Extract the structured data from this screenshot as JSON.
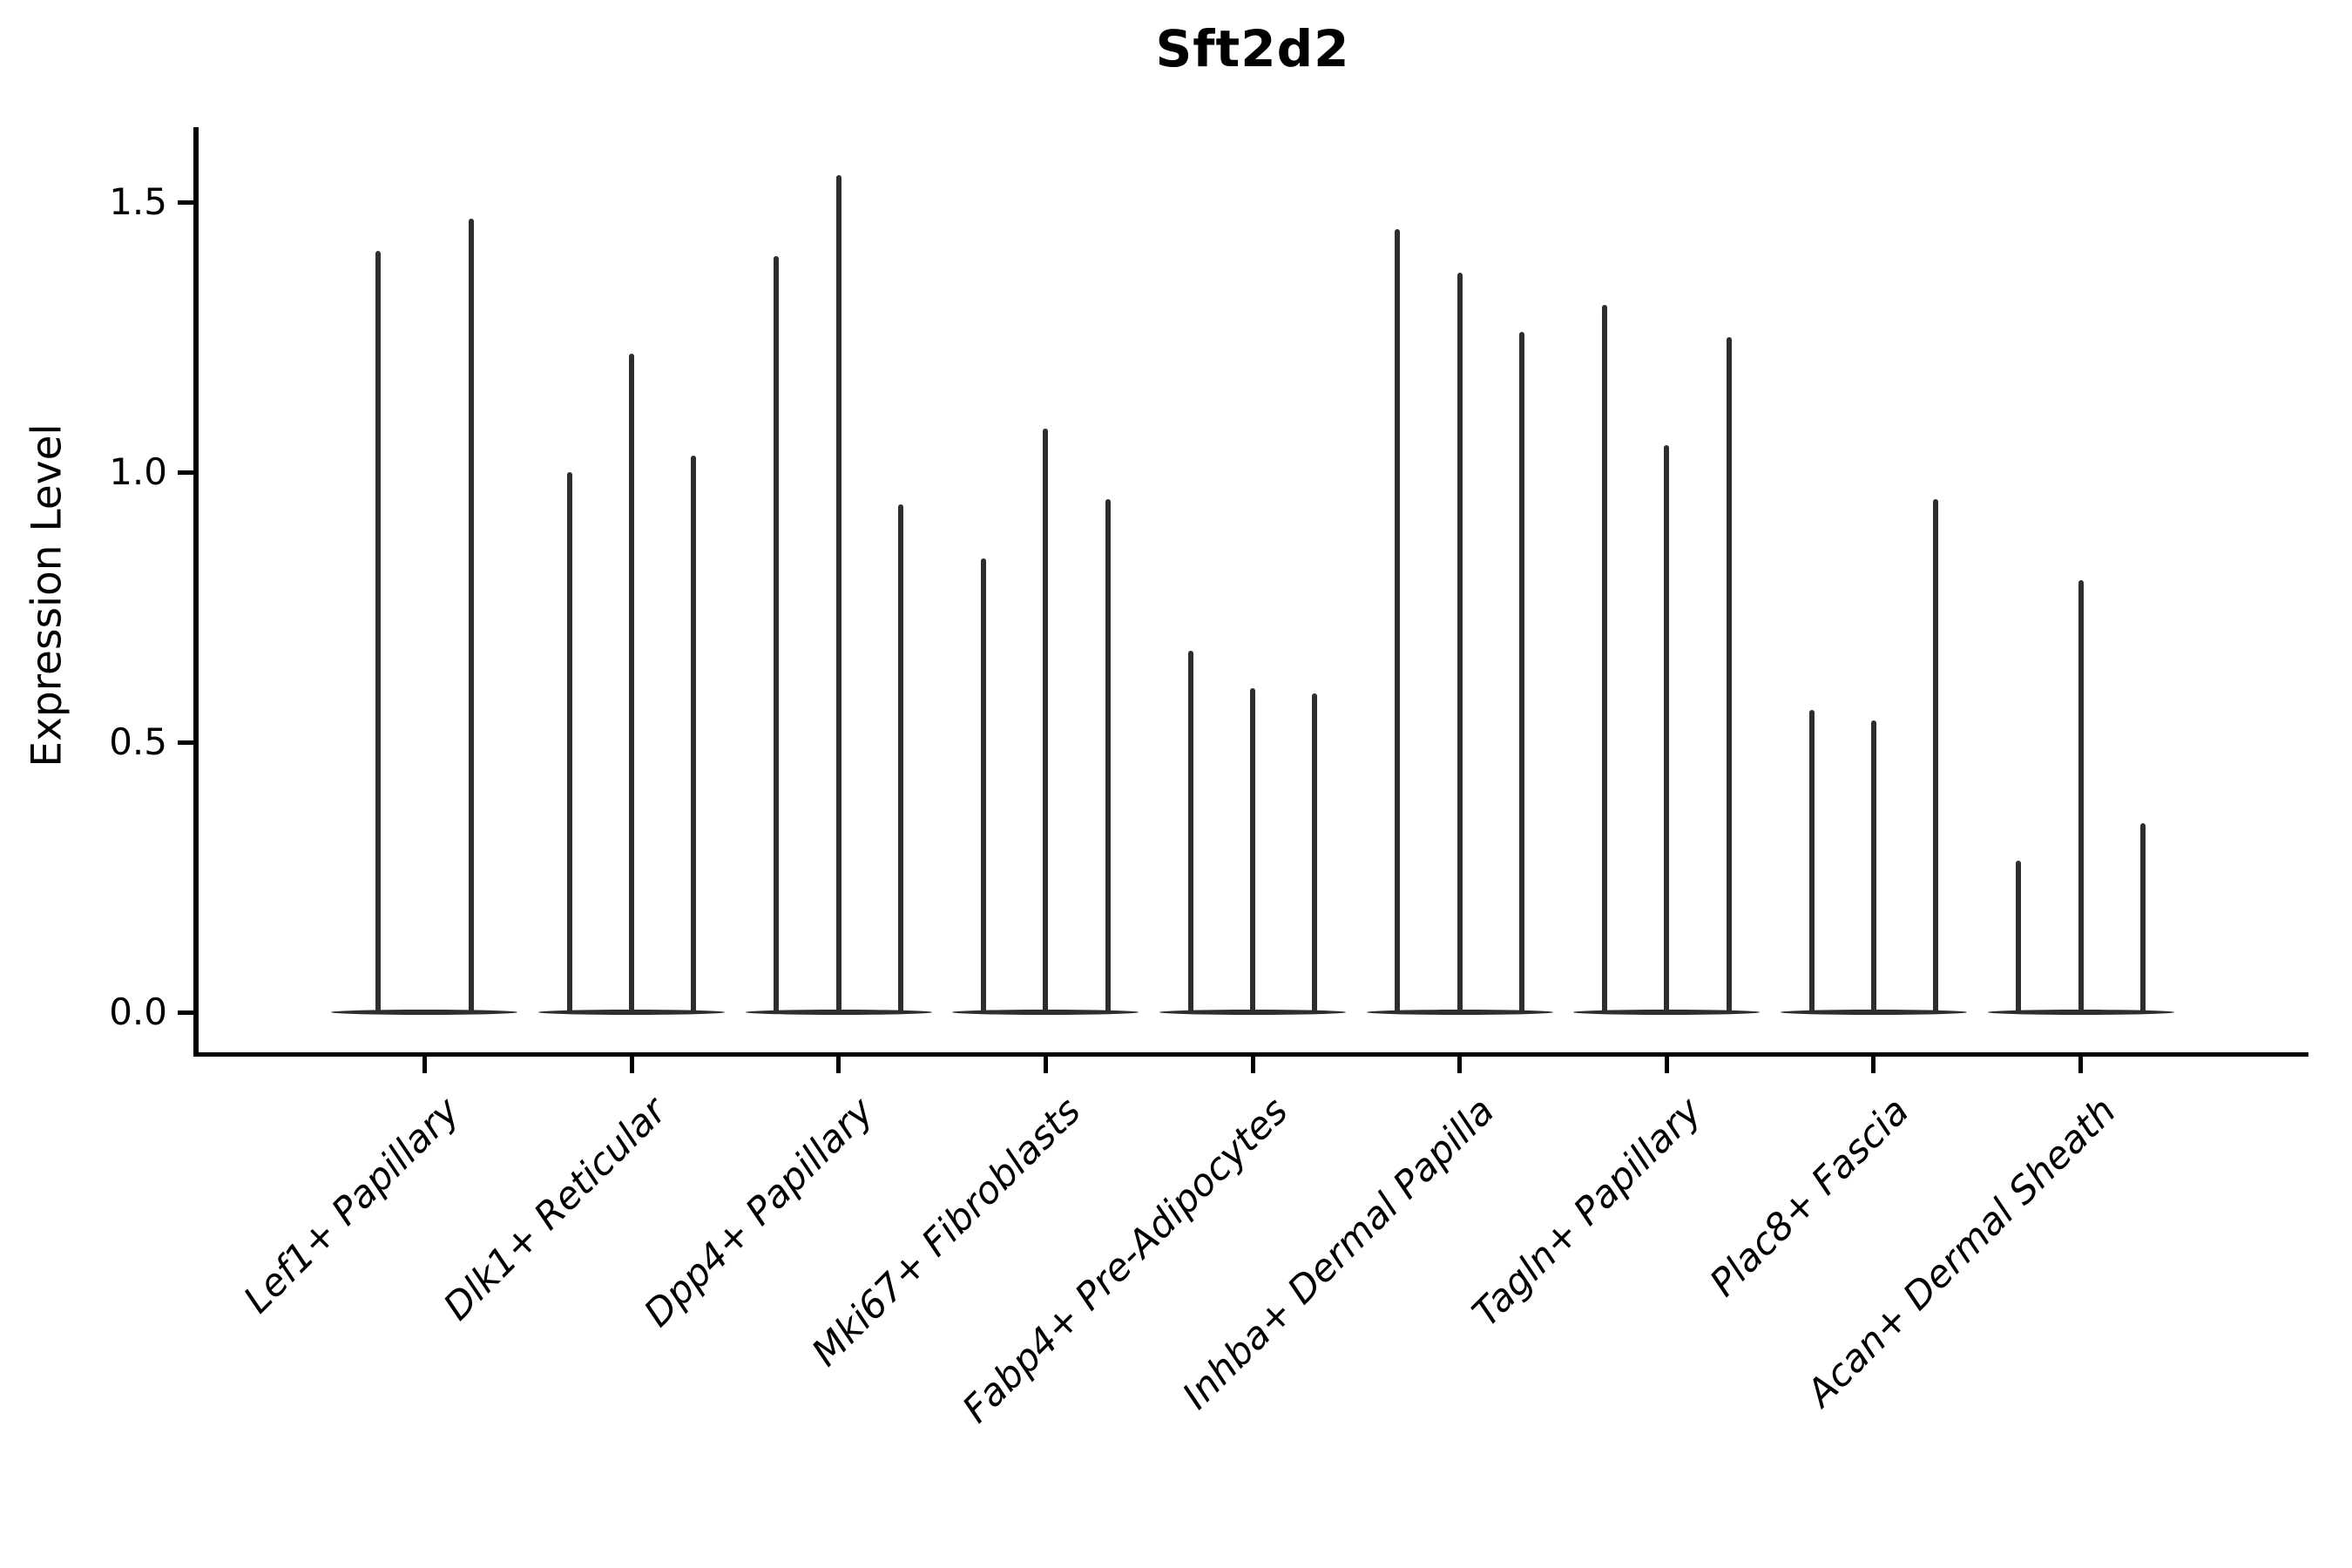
{
  "page": {
    "background": "#ffffff"
  },
  "chart_data": {
    "type": "violin",
    "title": "Sft2d2",
    "xlabel": "",
    "ylabel": "Expression Level",
    "yticks": [
      "0.0",
      "0.5",
      "1.0",
      "1.5"
    ],
    "ytick_values": [
      0.0,
      0.5,
      1.0,
      1.5
    ],
    "ylim": [
      -0.08,
      1.64
    ],
    "grid": false,
    "legend": false,
    "description": "Violin plot; every violin is collapsed to a wide flat base at 0 with a thin vertical spike reaching its maximum expression value. Groups with three violins have narrower violins; the first group has two wider violins.",
    "categories": [
      "Lef1+ Papillary",
      "Dlk1+ Reticular",
      "Dpp4+ Papillary",
      "Mki67+ Fibroblasts",
      "Fabp4+ Pre-Adipocytes",
      "Inhba+ Dermal Papilla",
      "Tagln+ Papillary",
      "Plac8+ Fascia",
      "Acan+ Dermal Sheath"
    ],
    "groups": [
      {
        "category": "Lef1+ Papillary",
        "violin_max": [
          1.41,
          1.47
        ]
      },
      {
        "category": "Dlk1+ Reticular",
        "violin_max": [
          1.0,
          1.22,
          1.03
        ]
      },
      {
        "category": "Dpp4+ Papillary",
        "violin_max": [
          1.4,
          1.55,
          0.94
        ]
      },
      {
        "category": "Mki67+ Fibroblasts",
        "violin_max": [
          0.84,
          1.08,
          0.95
        ]
      },
      {
        "category": "Fabp4+ Pre-Adipocytes",
        "violin_max": [
          0.67,
          0.6,
          0.59
        ]
      },
      {
        "category": "Inhba+ Dermal Papilla",
        "violin_max": [
          1.45,
          1.37,
          1.26
        ]
      },
      {
        "category": "Tagln+ Papillary",
        "violin_max": [
          1.31,
          1.05,
          1.25
        ]
      },
      {
        "category": "Plac8+ Fascia",
        "violin_max": [
          0.56,
          0.54,
          0.95
        ]
      },
      {
        "category": "Acan+ Dermal Sheath",
        "violin_max": [
          0.28,
          0.8,
          0.35
        ]
      }
    ],
    "colors": {
      "violin_ink": "#2e2e2e",
      "axis": "#000000",
      "text": "#000000",
      "background": "#ffffff"
    }
  }
}
